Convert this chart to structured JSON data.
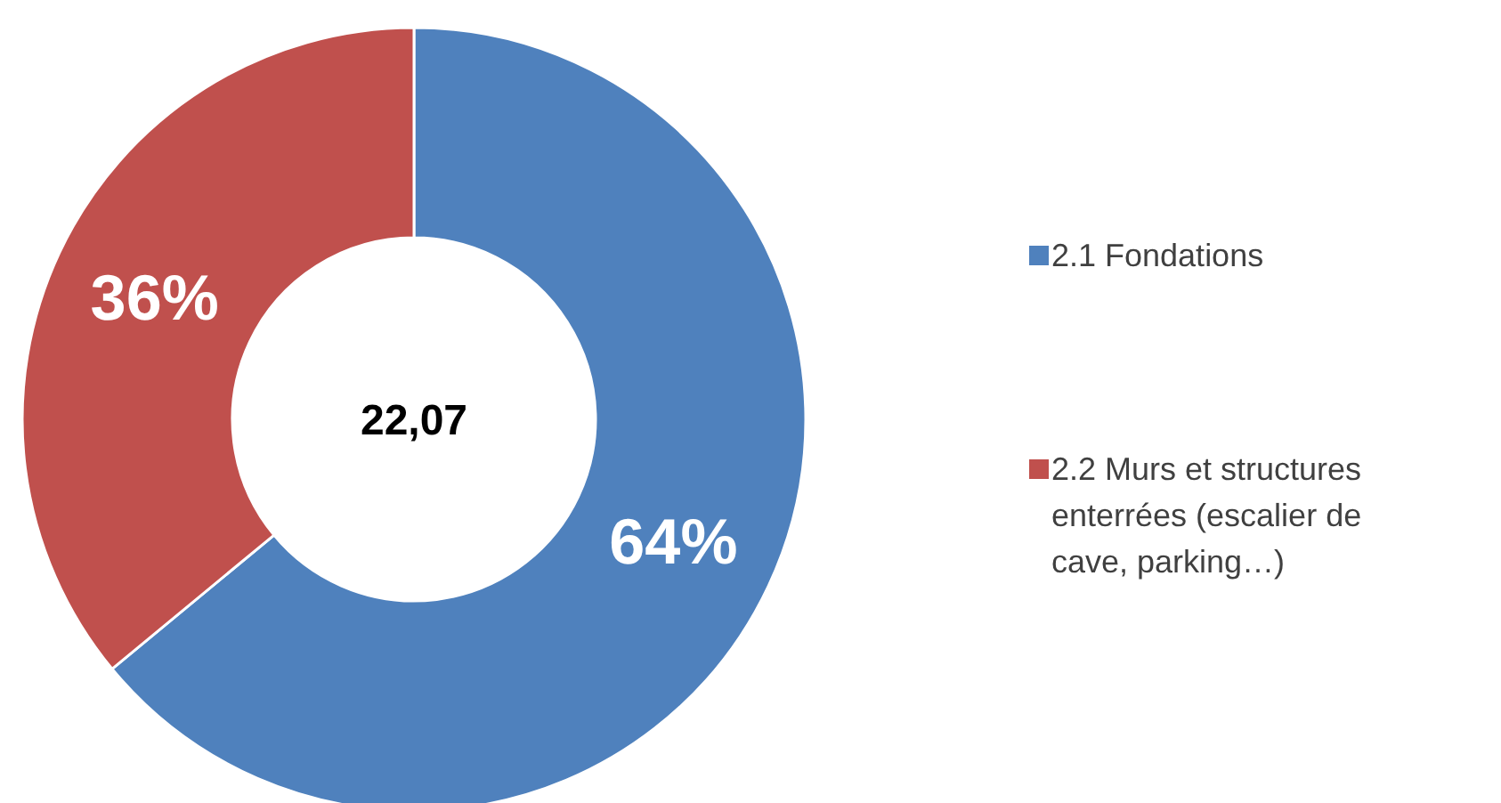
{
  "chart_data": {
    "type": "donut",
    "categories": [
      "2.1 Fondations",
      "2.2 Murs et structures enterrées (escalier de cave, parking…)"
    ],
    "values": [
      64,
      36
    ],
    "colors": [
      "#4f81bd",
      "#c0504d"
    ],
    "value_labels": [
      "64%",
      "36%"
    ],
    "annotations": [
      "22,07"
    ],
    "legend": "right"
  }
}
